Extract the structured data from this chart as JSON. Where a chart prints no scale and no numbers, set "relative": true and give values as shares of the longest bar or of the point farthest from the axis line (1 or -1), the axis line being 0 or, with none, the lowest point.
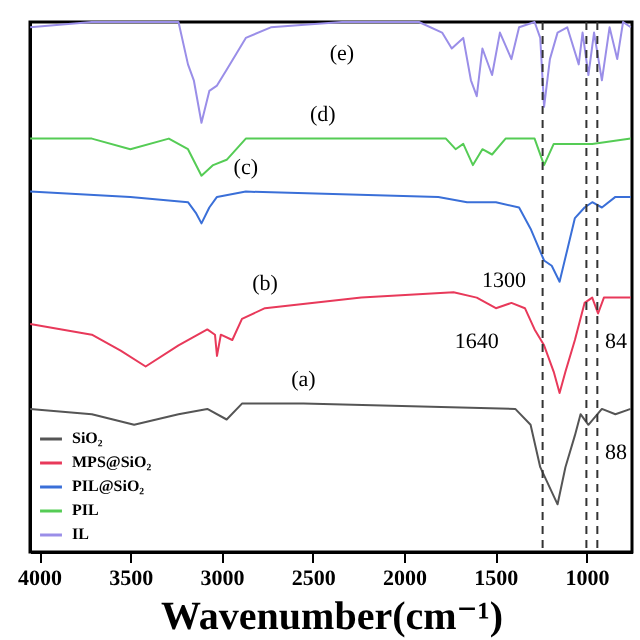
{
  "chart_data": {
    "type": "line",
    "relative": true,
    "xlabel": "Wavenumber(cm⁻¹)",
    "xlim": [
      4050,
      750
    ],
    "xticks": [
      4000,
      3500,
      3000,
      2500,
      2000,
      1500,
      1000
    ],
    "tick_labels": "x",
    "legend": "bottom left",
    "grid": false,
    "series": [
      {
        "name": "SiO₂",
        "color": "#555555",
        "x": [
          4049,
          3711,
          3479,
          3236,
          3078,
          2972,
          2888,
          2551,
          1390,
          1306,
          1253,
          1158,
          1115,
          1063,
          1032,
          989,
          915,
          841,
          757
        ],
        "values": [
          0.27,
          0.26,
          0.24,
          0.26,
          0.27,
          0.25,
          0.28,
          0.28,
          0.27,
          0.24,
          0.16,
          0.09,
          0.16,
          0.22,
          0.26,
          0.24,
          0.27,
          0.26,
          0.27
        ]
      },
      {
        "name": "MPS@SiO₂",
        "color": "#e8395a",
        "x": [
          4049,
          3711,
          3553,
          3416,
          3236,
          3078,
          3036,
          3025,
          3004,
          2941,
          2888,
          2762,
          2234,
          1728,
          1601,
          1496,
          1411,
          1337,
          1284,
          1232,
          1179,
          1147,
          1115,
          1063,
          1010,
          968,
          936,
          904,
          757
        ],
        "values": [
          0.43,
          0.41,
          0.38,
          0.35,
          0.39,
          0.42,
          0.41,
          0.37,
          0.41,
          0.4,
          0.44,
          0.46,
          0.48,
          0.49,
          0.48,
          0.46,
          0.47,
          0.46,
          0.42,
          0.39,
          0.34,
          0.3,
          0.34,
          0.4,
          0.47,
          0.48,
          0.45,
          0.48,
          0.48
        ]
      },
      {
        "name": "PIL@SiO₂",
        "color": "#3a6fd8",
        "x": [
          4049,
          3500,
          3184,
          3141,
          3110,
          3067,
          3025,
          2867,
          1812,
          1654,
          1496,
          1369,
          1306,
          1232,
          1190,
          1147,
          1105,
          1063,
          1010,
          968,
          915,
          841,
          757
        ],
        "values": [
          0.68,
          0.67,
          0.66,
          0.64,
          0.62,
          0.65,
          0.67,
          0.68,
          0.67,
          0.66,
          0.66,
          0.65,
          0.61,
          0.55,
          0.54,
          0.51,
          0.57,
          0.63,
          0.65,
          0.66,
          0.65,
          0.67,
          0.67
        ]
      },
      {
        "name": "PIL",
        "color": "#55cc55",
        "x": [
          4049,
          3711,
          3500,
          3289,
          3184,
          3110,
          3046,
          2972,
          2867,
          2445,
          1770,
          1717,
          1675,
          1622,
          1570,
          1517,
          1443,
          1284,
          1232,
          1179,
          968,
          757
        ],
        "values": [
          0.78,
          0.78,
          0.76,
          0.78,
          0.76,
          0.71,
          0.73,
          0.74,
          0.78,
          0.78,
          0.78,
          0.76,
          0.77,
          0.73,
          0.76,
          0.75,
          0.78,
          0.78,
          0.73,
          0.77,
          0.77,
          0.78
        ]
      },
      {
        "name": "IL",
        "color": "#9a8ee8",
        "x": [
          4049,
          3711,
          3236,
          3184,
          3152,
          3110,
          3067,
          3025,
          2972,
          2919,
          2867,
          2730,
          2340,
          1918,
          1791,
          1738,
          1675,
          1633,
          1601,
          1570,
          1517,
          1474,
          1411,
          1369,
          1284,
          1253,
          1232,
          1200,
          1158,
          1105,
          1042,
          1021,
          989,
          958,
          915,
          873,
          831,
          799,
          757
        ],
        "values": [
          0.99,
          1.0,
          1.0,
          0.92,
          0.89,
          0.81,
          0.87,
          0.88,
          0.91,
          0.94,
          0.97,
          0.99,
          1.0,
          1.0,
          0.98,
          0.95,
          0.97,
          0.89,
          0.86,
          0.95,
          0.9,
          0.98,
          0.93,
          0.99,
          1.0,
          0.97,
          0.84,
          0.93,
          0.98,
          0.99,
          0.92,
          0.98,
          0.9,
          0.98,
          0.89,
          0.99,
          0.93,
          1.0,
          0.99
        ]
      }
    ],
    "ref_lines": [
      {
        "axis": "x",
        "value": 1240,
        "color": "#333333",
        "line_style": "dashed"
      },
      {
        "axis": "x",
        "value": 1000,
        "color": "#333333",
        "line_style": "dashed"
      },
      {
        "axis": "x",
        "value": 940,
        "color": "#333333",
        "line_style": "dashed"
      }
    ],
    "annotations": [
      {
        "text": "(e)",
        "x": 2340,
        "y": 1.0
      },
      {
        "text": "(d)",
        "x": 2445,
        "y": 0.78
      },
      {
        "text": "(c)",
        "x": 2867,
        "y": 0.68
      },
      {
        "text": "(b)",
        "x": 2762,
        "y": 0.46
      },
      {
        "text": "(a)",
        "x": 2551,
        "y": 0.28
      },
      {
        "text": "1300",
        "x": 1232,
        "y": 0.55
      },
      {
        "text": "1640",
        "x": 1601,
        "y": 0.48
      },
      {
        "text": "84",
        "x": 904,
        "y": 0.48
      },
      {
        "text": "88",
        "x": 915,
        "y": 0.27
      }
    ]
  }
}
